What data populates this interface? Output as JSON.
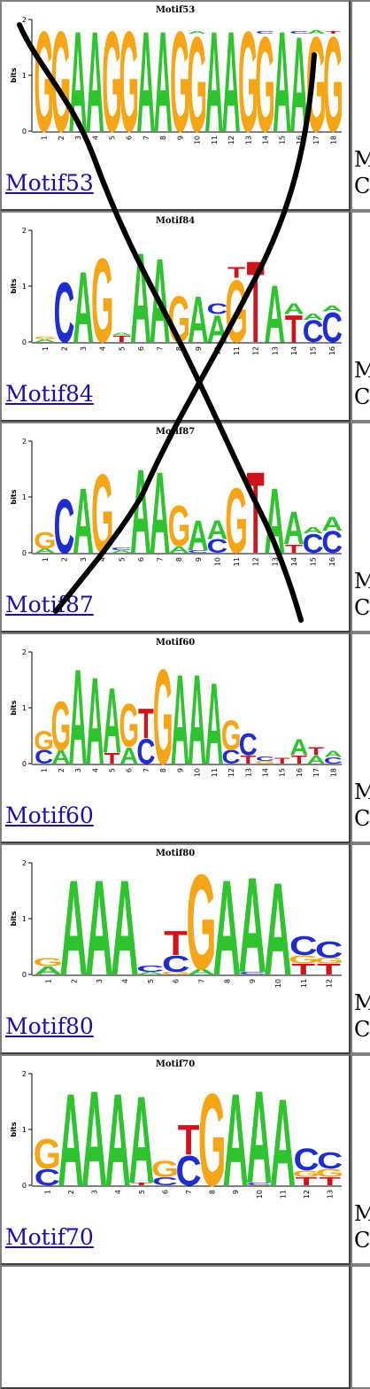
{
  "colors": {
    "A": "#2fc42f",
    "C": "#1f2ccf",
    "G": "#f5a516",
    "T": "#d0141c",
    "link": "#1a0dab"
  },
  "overlay_mark": "x-cross-out",
  "motifs": [
    {
      "name": "Motif53",
      "link_label": "Motif53",
      "axis_label": "bits",
      "y_ticks": [
        "0",
        "1",
        "2"
      ],
      "positions": [
        "1",
        "2",
        "3",
        "4",
        "5",
        "6",
        "7",
        "8",
        "9",
        "10",
        "11",
        "12",
        "13",
        "14",
        "15",
        "16",
        "17",
        "18"
      ],
      "stacks": [
        [
          [
            "G",
            1.85
          ]
        ],
        [
          [
            "G",
            1.85
          ]
        ],
        [
          [
            "A",
            1.85
          ]
        ],
        [
          [
            "A",
            1.85
          ]
        ],
        [
          [
            "G",
            1.85
          ]
        ],
        [
          [
            "G",
            1.85
          ]
        ],
        [
          [
            "A",
            1.85
          ]
        ],
        [
          [
            "A",
            1.85
          ]
        ],
        [
          [
            "G",
            1.85
          ]
        ],
        [
          [
            "G",
            1.75
          ],
          [
            "A",
            0.05
          ]
        ],
        [
          [
            "A",
            1.85
          ]
        ],
        [
          [
            "A",
            1.85
          ]
        ],
        [
          [
            "G",
            1.85
          ]
        ],
        [
          [
            "G",
            1.75
          ],
          [
            "C",
            0.05
          ]
        ],
        [
          [
            "A",
            1.85
          ]
        ],
        [
          [
            "A",
            1.75
          ],
          [
            "C",
            0.05
          ]
        ],
        [
          [
            "G",
            1.75
          ],
          [
            "A",
            0.06
          ]
        ],
        [
          [
            "G",
            1.75
          ],
          [
            "T",
            0.05
          ]
        ]
      ],
      "right_text": [
        "M",
        "C"
      ]
    },
    {
      "name": "Motif84",
      "link_label": "Motif84",
      "axis_label": "bits",
      "y_ticks": [
        "0",
        "1",
        "2"
      ],
      "positions": [
        "1",
        "2",
        "3",
        "4",
        "5",
        "6",
        "7",
        "8",
        "9",
        "10",
        "11",
        "12",
        "13",
        "14",
        "15",
        "16"
      ],
      "stacks": [
        [
          [
            "A",
            0.05
          ],
          [
            "G",
            0.05
          ]
        ],
        [
          [
            "C",
            1.1
          ]
        ],
        [
          [
            "A",
            1.3
          ]
        ],
        [
          [
            "G",
            1.55
          ]
        ],
        [
          [
            "T",
            0.12
          ],
          [
            "A",
            0.05
          ]
        ],
        [
          [
            "A",
            1.65
          ]
        ],
        [
          [
            "A",
            1.55
          ]
        ],
        [
          [
            "G",
            0.85
          ]
        ],
        [
          [
            "A",
            0.85
          ]
        ],
        [
          [
            "A",
            0.5
          ],
          [
            "C",
            0.2
          ]
        ],
        [
          [
            "G",
            1.15
          ],
          [
            "T",
            0.2
          ]
        ],
        [
          [
            "T",
            1.5
          ]
        ],
        [
          [
            "A",
            1.05
          ]
        ],
        [
          [
            "T",
            0.5
          ],
          [
            "A",
            0.2
          ]
        ],
        [
          [
            "C",
            0.4
          ],
          [
            "A",
            0.12
          ]
        ],
        [
          [
            "C",
            0.55
          ],
          [
            "A",
            0.1
          ]
        ]
      ],
      "right_text": [
        "M",
        "C"
      ]
    },
    {
      "name": "Motif87",
      "link_label": "Motif87",
      "axis_label": "bits",
      "y_ticks": [
        "0",
        "1",
        "2"
      ],
      "positions": [
        "1",
        "2",
        "3",
        "4",
        "5",
        "6",
        "7",
        "8",
        "9",
        "10",
        "11",
        "12",
        "13",
        "14",
        "15",
        "16"
      ],
      "stacks": [
        [
          [
            "A",
            0.08
          ],
          [
            "G",
            0.3
          ]
        ],
        [
          [
            "C",
            1.0
          ]
        ],
        [
          [
            "A",
            1.2
          ]
        ],
        [
          [
            "G",
            1.45
          ]
        ],
        [
          [
            "A",
            0.05
          ],
          [
            "C",
            0.05
          ]
        ],
        [
          [
            "A",
            1.55
          ]
        ],
        [
          [
            "A",
            1.5
          ]
        ],
        [
          [
            "A",
            0.12
          ],
          [
            "G",
            0.75
          ]
        ],
        [
          [
            "C",
            0.05
          ],
          [
            "A",
            0.55
          ]
        ],
        [
          [
            "C",
            0.25
          ],
          [
            "A",
            0.35
          ]
        ],
        [
          [
            "G",
            1.2
          ]
        ],
        [
          [
            "T",
            1.5
          ]
        ],
        [
          [
            "A",
            1.2
          ]
        ],
        [
          [
            "T",
            0.15
          ],
          [
            "A",
            0.6
          ]
        ],
        [
          [
            "C",
            0.35
          ],
          [
            "A",
            0.12
          ]
        ],
        [
          [
            "C",
            0.4
          ],
          [
            "A",
            0.25
          ]
        ]
      ],
      "right_text": [
        "M",
        "C"
      ]
    },
    {
      "name": "Motif60",
      "link_label": "Motif60",
      "axis_label": "bits",
      "y_ticks": [
        "0",
        "1",
        "2"
      ],
      "positions": [
        "1",
        "2",
        "3",
        "4",
        "5",
        "6",
        "7",
        "8",
        "9",
        "10",
        "11",
        "12",
        "13",
        "14",
        "15",
        "16",
        "17",
        "18"
      ],
      "stacks": [
        [
          [
            "C",
            0.25
          ],
          [
            "G",
            0.35
          ]
        ],
        [
          [
            "A",
            0.25
          ],
          [
            "G",
            0.9
          ]
        ],
        [
          [
            "A",
            1.75
          ]
        ],
        [
          [
            "A",
            1.6
          ]
        ],
        [
          [
            "T",
            0.2
          ],
          [
            "A",
            1.2
          ]
        ],
        [
          [
            "A",
            0.3
          ],
          [
            "G",
            0.8
          ]
        ],
        [
          [
            "C",
            0.45
          ],
          [
            "T",
            0.55
          ]
        ],
        [
          [
            "G",
            1.75
          ]
        ],
        [
          [
            "A",
            1.65
          ]
        ],
        [
          [
            "A",
            1.65
          ]
        ],
        [
          [
            "A",
            1.5
          ]
        ],
        [
          [
            "C",
            0.25
          ],
          [
            "G",
            0.55
          ]
        ],
        [
          [
            "T",
            0.15
          ],
          [
            "C",
            0.4
          ]
        ],
        [
          [
            "G",
            0.05
          ],
          [
            "C",
            0.08
          ]
        ],
        [
          [
            "T",
            0.1
          ]
        ],
        [
          [
            "T",
            0.15
          ],
          [
            "A",
            0.3
          ]
        ],
        [
          [
            "A",
            0.15
          ],
          [
            "T",
            0.15
          ]
        ],
        [
          [
            "C",
            0.12
          ],
          [
            "A",
            0.12
          ]
        ]
      ],
      "right_text": [
        "M",
        "C"
      ]
    },
    {
      "name": "Motif80",
      "link_label": "Motif80",
      "axis_label": "bits",
      "y_ticks": [
        "0",
        "1",
        "2"
      ],
      "positions": [
        "1",
        "2",
        "3",
        "4",
        "5",
        "6",
        "7",
        "8",
        "9",
        "10",
        "11",
        "12"
      ],
      "stacks": [
        [
          [
            "A",
            0.15
          ],
          [
            "G",
            0.15
          ]
        ],
        [
          [
            "A",
            1.75
          ]
        ],
        [
          [
            "A",
            1.75
          ]
        ],
        [
          [
            "A",
            1.75
          ]
        ],
        [
          [
            "A",
            0.05
          ],
          [
            "C",
            0.12
          ]
        ],
        [
          [
            "G",
            0.05
          ],
          [
            "C",
            0.3
          ],
          [
            "T",
            0.45
          ]
        ],
        [
          [
            "A",
            0.1
          ],
          [
            "G",
            1.75
          ]
        ],
        [
          [
            "A",
            1.75
          ]
        ],
        [
          [
            "C",
            0.05
          ],
          [
            "A",
            1.75
          ]
        ],
        [
          [
            "A",
            1.7
          ]
        ],
        [
          [
            "T",
            0.2
          ],
          [
            "G",
            0.15
          ],
          [
            "C",
            0.35
          ]
        ],
        [
          [
            "T",
            0.2
          ],
          [
            "G",
            0.1
          ],
          [
            "C",
            0.3
          ]
        ]
      ],
      "right_text": [
        "M",
        "C"
      ]
    },
    {
      "name": "Motif70",
      "link_label": "Motif70",
      "axis_label": "bits",
      "y_ticks": [
        "0",
        "1",
        "2"
      ],
      "positions": [
        "1",
        "2",
        "3",
        "4",
        "5",
        "6",
        "7",
        "8",
        "9",
        "10",
        "11",
        "12",
        "13"
      ],
      "stacks": [
        [
          [
            "C",
            0.3
          ],
          [
            "G",
            0.55
          ]
        ],
        [
          [
            "A",
            1.7
          ]
        ],
        [
          [
            "A",
            1.75
          ]
        ],
        [
          [
            "A",
            1.7
          ]
        ],
        [
          [
            "T",
            0.05
          ],
          [
            "A",
            1.6
          ]
        ],
        [
          [
            "C",
            0.15
          ],
          [
            "G",
            0.3
          ]
        ],
        [
          [
            "C",
            0.55
          ],
          [
            "T",
            0.55
          ]
        ],
        [
          [
            "G",
            1.7
          ]
        ],
        [
          [
            "A",
            1.7
          ]
        ],
        [
          [
            "C",
            0.05
          ],
          [
            "A",
            1.7
          ]
        ],
        [
          [
            "A",
            1.6
          ]
        ],
        [
          [
            "T",
            0.15
          ],
          [
            "G",
            0.12
          ],
          [
            "C",
            0.4
          ]
        ],
        [
          [
            "T",
            0.15
          ],
          [
            "G",
            0.15
          ],
          [
            "C",
            0.3
          ]
        ]
      ],
      "right_text": [
        "M",
        "C"
      ]
    }
  ]
}
